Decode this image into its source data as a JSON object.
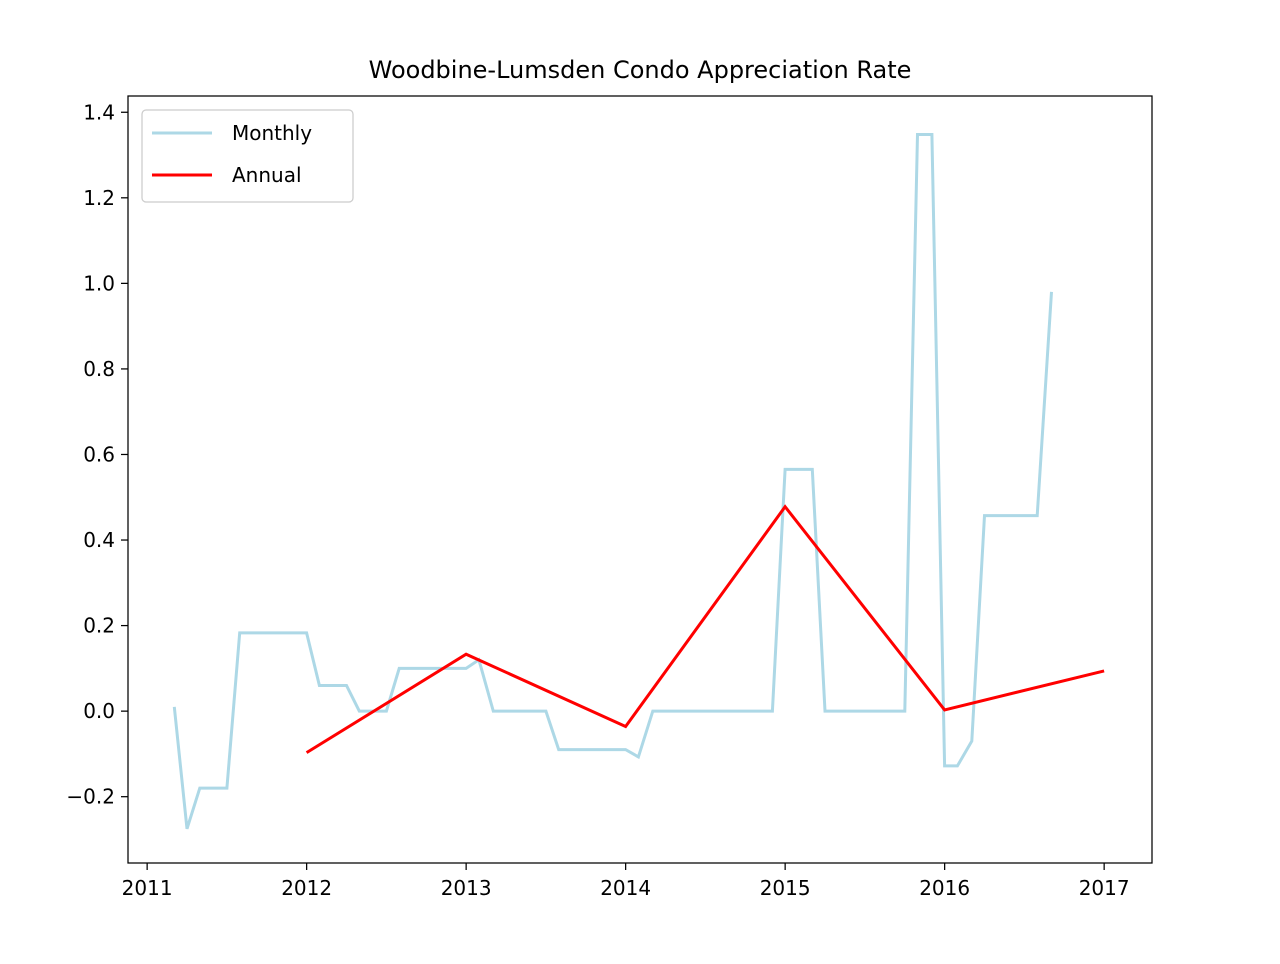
{
  "chart_data": {
    "type": "line",
    "title": "Woodbine-Lumsden Condo Appreciation Rate",
    "xlabel": "",
    "ylabel": "",
    "xlim": [
      2010.88,
      2017.3
    ],
    "ylim": [
      -0.355,
      1.438
    ],
    "xticks": [
      2011,
      2012,
      2013,
      2014,
      2015,
      2016,
      2017
    ],
    "yticks": [
      -0.2,
      0.0,
      0.2,
      0.4,
      0.6,
      0.8,
      1.0,
      1.2,
      1.4
    ],
    "ytick_labels": [
      "−0.2",
      "0.0",
      "0.2",
      "0.4",
      "0.6",
      "0.8",
      "1.0",
      "1.2",
      "1.4"
    ],
    "grid": false,
    "legend_position": "upper-left",
    "series": [
      {
        "name": "Monthly",
        "color": "#add8e6",
        "x": [
          2011.17,
          2011.25,
          2011.33,
          2011.5,
          2011.58,
          2012.0,
          2012.08,
          2012.25,
          2012.33,
          2012.5,
          2012.58,
          2013.0,
          2013.08,
          2013.17,
          2013.5,
          2013.58,
          2014.0,
          2014.08,
          2014.17,
          2014.92,
          2015.0,
          2015.17,
          2015.25,
          2015.75,
          2015.83,
          2015.92,
          2016.0,
          2016.08,
          2016.17,
          2016.25,
          2016.58,
          2016.67
        ],
        "y": [
          0.01,
          -0.275,
          -0.18,
          -0.18,
          0.183,
          0.183,
          0.06,
          0.06,
          0.0,
          0.0,
          0.1,
          0.1,
          0.12,
          0.0,
          0.0,
          -0.09,
          -0.09,
          -0.107,
          0.0,
          0.0,
          0.565,
          0.565,
          0.0,
          0.0,
          1.348,
          1.348,
          -0.128,
          -0.128,
          -0.07,
          0.457,
          0.457,
          0.98
        ]
      },
      {
        "name": "Annual",
        "color": "#ff0000",
        "x": [
          2012,
          2013,
          2014,
          2015,
          2016,
          2017
        ],
        "y": [
          -0.097,
          0.133,
          -0.036,
          0.478,
          0.003,
          0.094
        ]
      }
    ]
  }
}
